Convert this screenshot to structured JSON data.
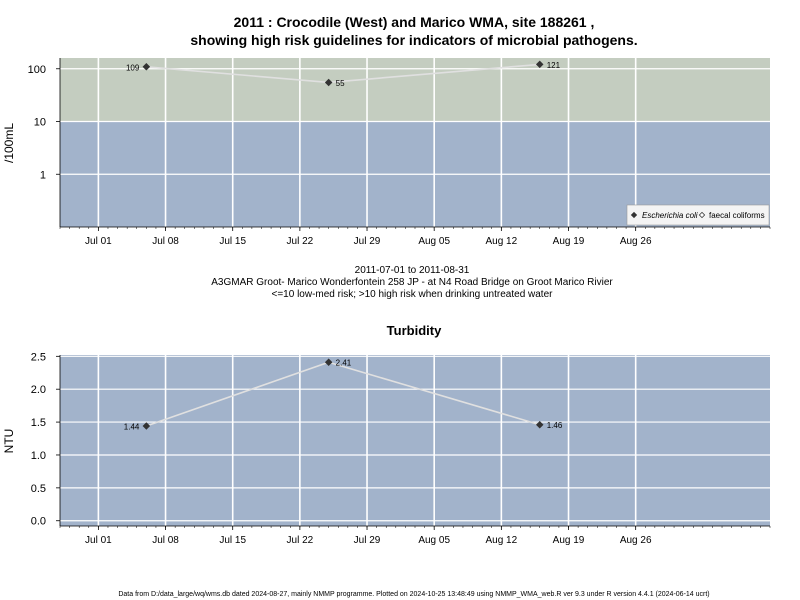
{
  "header": {
    "title_line1": "2011 : Crocodile (West) and Marico WMA, site 188261 ,",
    "title_line2": "showing high risk guidelines for indicators of microbial pathogens."
  },
  "subtitle": {
    "date_range": "2011-07-01 to 2011-08-31",
    "station": "A3GMAR Groot- Marico Wonderfontein 258 JP - at N4 Road Bridge on Groot Marico Rivier",
    "risk_note": "<=10 low-med risk; >10 high risk when drinking untreated water"
  },
  "footer": {
    "note": "Data from D:/data_large/wq/wms.db dated 2024-08-27, mainly NMMP programme. Plotted on 2024-10-25 13:48:49 using NMMP_WMA_web.R ver 9.3 under R version 4.4.1 (2024-06-14 ucrt)"
  },
  "colors": {
    "high_risk_band": "#c4cdc0",
    "low_risk_band": "#a2b3cb",
    "grid": "#ffffff",
    "series_line": "#e0e0e0",
    "marker": "#333333"
  },
  "chart_data": [
    {
      "type": "scatter",
      "title": "",
      "xlabel": "",
      "ylabel": "/100mL",
      "y_scale": "log",
      "xlim": [
        "2011-06-27",
        "2011-09-09"
      ],
      "ylim": [
        0.1,
        160
      ],
      "x_ticks": [
        "2011-07-01",
        "2011-07-08",
        "2011-07-15",
        "2011-07-22",
        "2011-07-29",
        "2011-08-05",
        "2011-08-12",
        "2011-08-19",
        "2011-08-26"
      ],
      "x_tick_labels": [
        "Jul 01",
        "Jul 08",
        "Jul 15",
        "Jul 22",
        "Jul 29",
        "Aug 05",
        "Aug 12",
        "Aug 19",
        "Aug 26"
      ],
      "y_ticks": [
        1,
        10,
        100
      ],
      "y_tick_labels": [
        "1",
        "10",
        "100"
      ],
      "threshold": 10,
      "bands": [
        {
          "from": 10,
          "to": 160,
          "color_key": "high_risk_band"
        },
        {
          "from": 0.1,
          "to": 10,
          "color_key": "low_risk_band"
        }
      ],
      "grid": true,
      "legend_position": "bottom-right",
      "series": [
        {
          "name": "Escherichia coli",
          "marker": "filled-diamond",
          "x": [
            "2011-07-06",
            "2011-07-25",
            "2011-08-16"
          ],
          "y": [
            109,
            55,
            121
          ],
          "labels": [
            "109",
            "55",
            "121"
          ],
          "label_side": [
            "left",
            "right",
            "right"
          ]
        },
        {
          "name": "faecal coliforms",
          "marker": "open-diamond",
          "x": [],
          "y": []
        }
      ]
    },
    {
      "type": "line",
      "title": "Turbidity",
      "xlabel": "",
      "ylabel": "NTU",
      "y_scale": "linear",
      "xlim": [
        "2011-06-27",
        "2011-09-09"
      ],
      "ylim": [
        -0.08,
        2.52
      ],
      "x_ticks": [
        "2011-07-01",
        "2011-07-08",
        "2011-07-15",
        "2011-07-22",
        "2011-07-29",
        "2011-08-05",
        "2011-08-12",
        "2011-08-19",
        "2011-08-26"
      ],
      "x_tick_labels": [
        "Jul 01",
        "Jul 08",
        "Jul 15",
        "Jul 22",
        "Jul 29",
        "Aug 05",
        "Aug 12",
        "Aug 19",
        "Aug 26"
      ],
      "y_ticks": [
        0,
        0.5,
        1,
        1.5,
        2,
        2.5
      ],
      "y_tick_labels": [
        "0.0",
        "0.5",
        "1.0",
        "1.5",
        "2.0",
        "2.5"
      ],
      "grid": true,
      "series": [
        {
          "name": "",
          "marker": "filled-diamond",
          "x": [
            "2011-07-06",
            "2011-07-25",
            "2011-08-16"
          ],
          "y": [
            1.44,
            2.41,
            1.46
          ],
          "labels": [
            "1.44",
            "2.41",
            "1.46"
          ],
          "label_side": [
            "left",
            "right",
            "right"
          ]
        }
      ]
    }
  ]
}
